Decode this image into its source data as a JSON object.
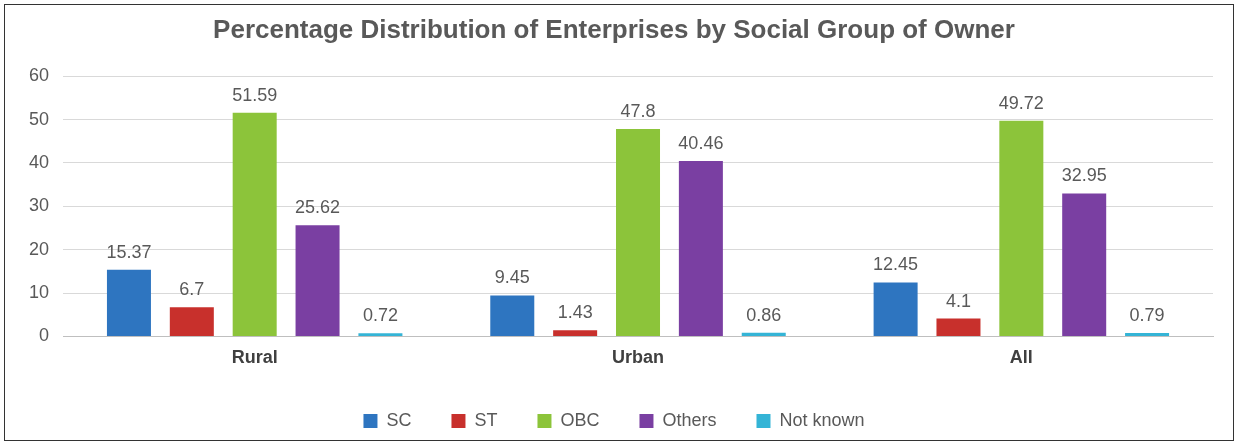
{
  "chart_data": {
    "type": "bar",
    "title": "Percentage Distribution of Enterprises by Social Group of Owner",
    "categories": [
      "Rural",
      "Urban",
      "All"
    ],
    "series": [
      {
        "name": "SC",
        "color": "#2e75c0",
        "values": [
          15.37,
          9.45,
          12.45
        ]
      },
      {
        "name": "ST",
        "color": "#c8302c",
        "values": [
          6.7,
          1.43,
          4.1
        ]
      },
      {
        "name": "OBC",
        "color": "#8cc43a",
        "values": [
          51.59,
          47.8,
          49.72
        ]
      },
      {
        "name": "Others",
        "color": "#7a3fa2",
        "values": [
          25.62,
          40.46,
          32.95
        ]
      },
      {
        "name": "Not known",
        "color": "#34b4d6",
        "values": [
          0.72,
          0.86,
          0.79
        ]
      }
    ],
    "ylim": [
      0,
      60
    ],
    "yticks": [
      0,
      10,
      20,
      30,
      40,
      50,
      60
    ],
    "grid": "y",
    "legend": "bottom",
    "data_labels": true
  }
}
